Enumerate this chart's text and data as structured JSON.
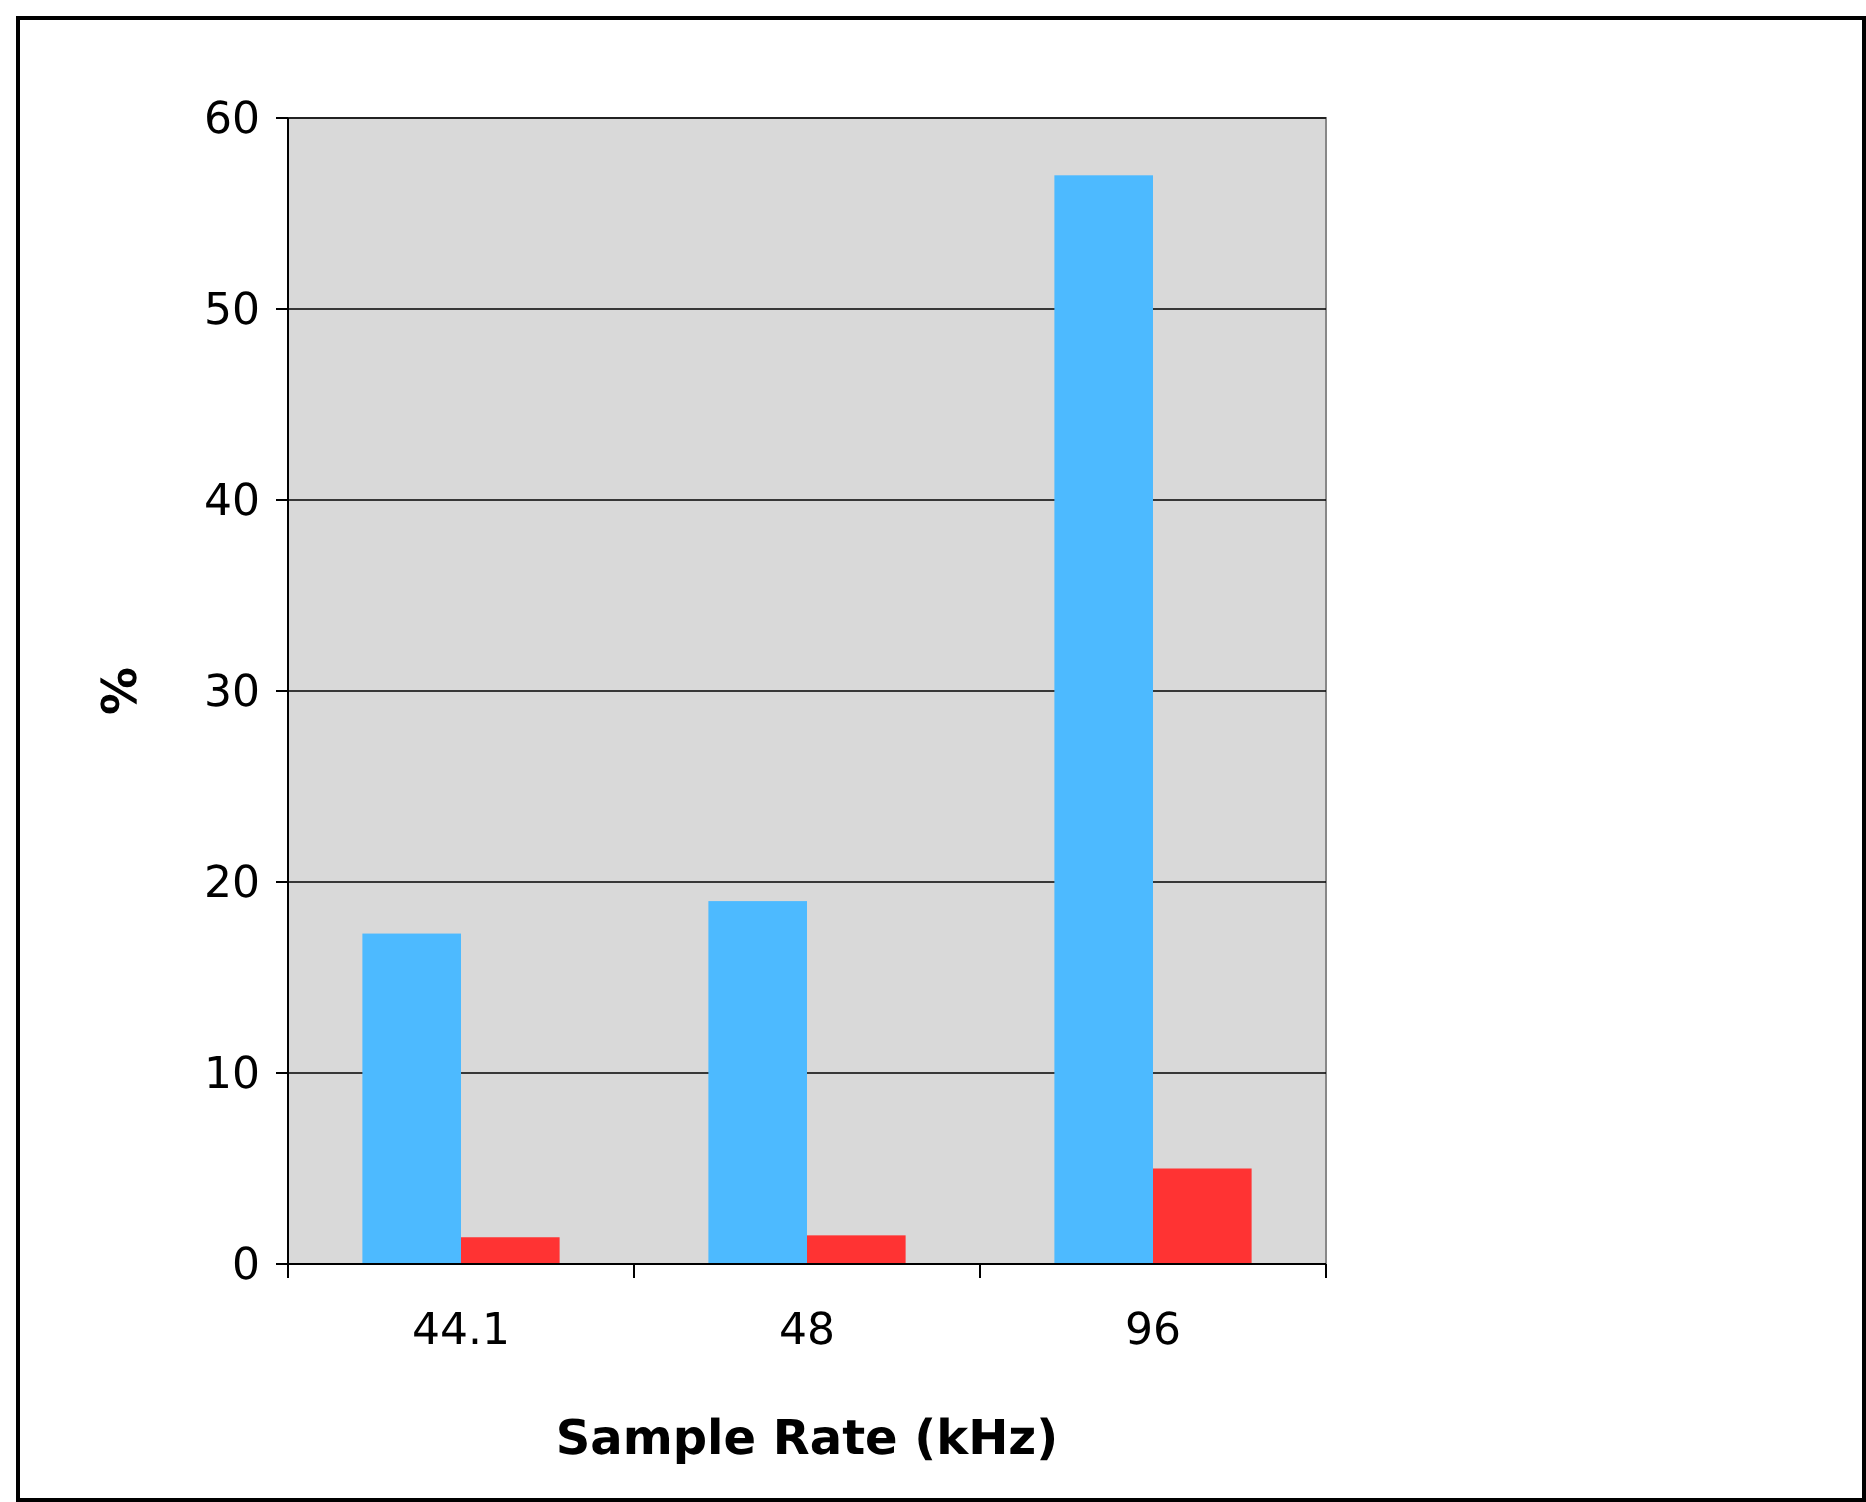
{
  "chart_data": {
    "type": "bar",
    "xlabel": "Sample Rate (kHz)",
    "ylabel": "%",
    "categories": [
      "44.1",
      "48",
      "96"
    ],
    "series": [
      {
        "color": "#4dbaff",
        "values": [
          17.3,
          19.0,
          57.0
        ]
      },
      {
        "color": "#ff3333",
        "values": [
          1.4,
          1.5,
          5.0
        ]
      }
    ],
    "ylim": [
      0,
      60
    ],
    "yticks": [
      0,
      10,
      20,
      30,
      40,
      50,
      60
    ],
    "grid": "y"
  }
}
